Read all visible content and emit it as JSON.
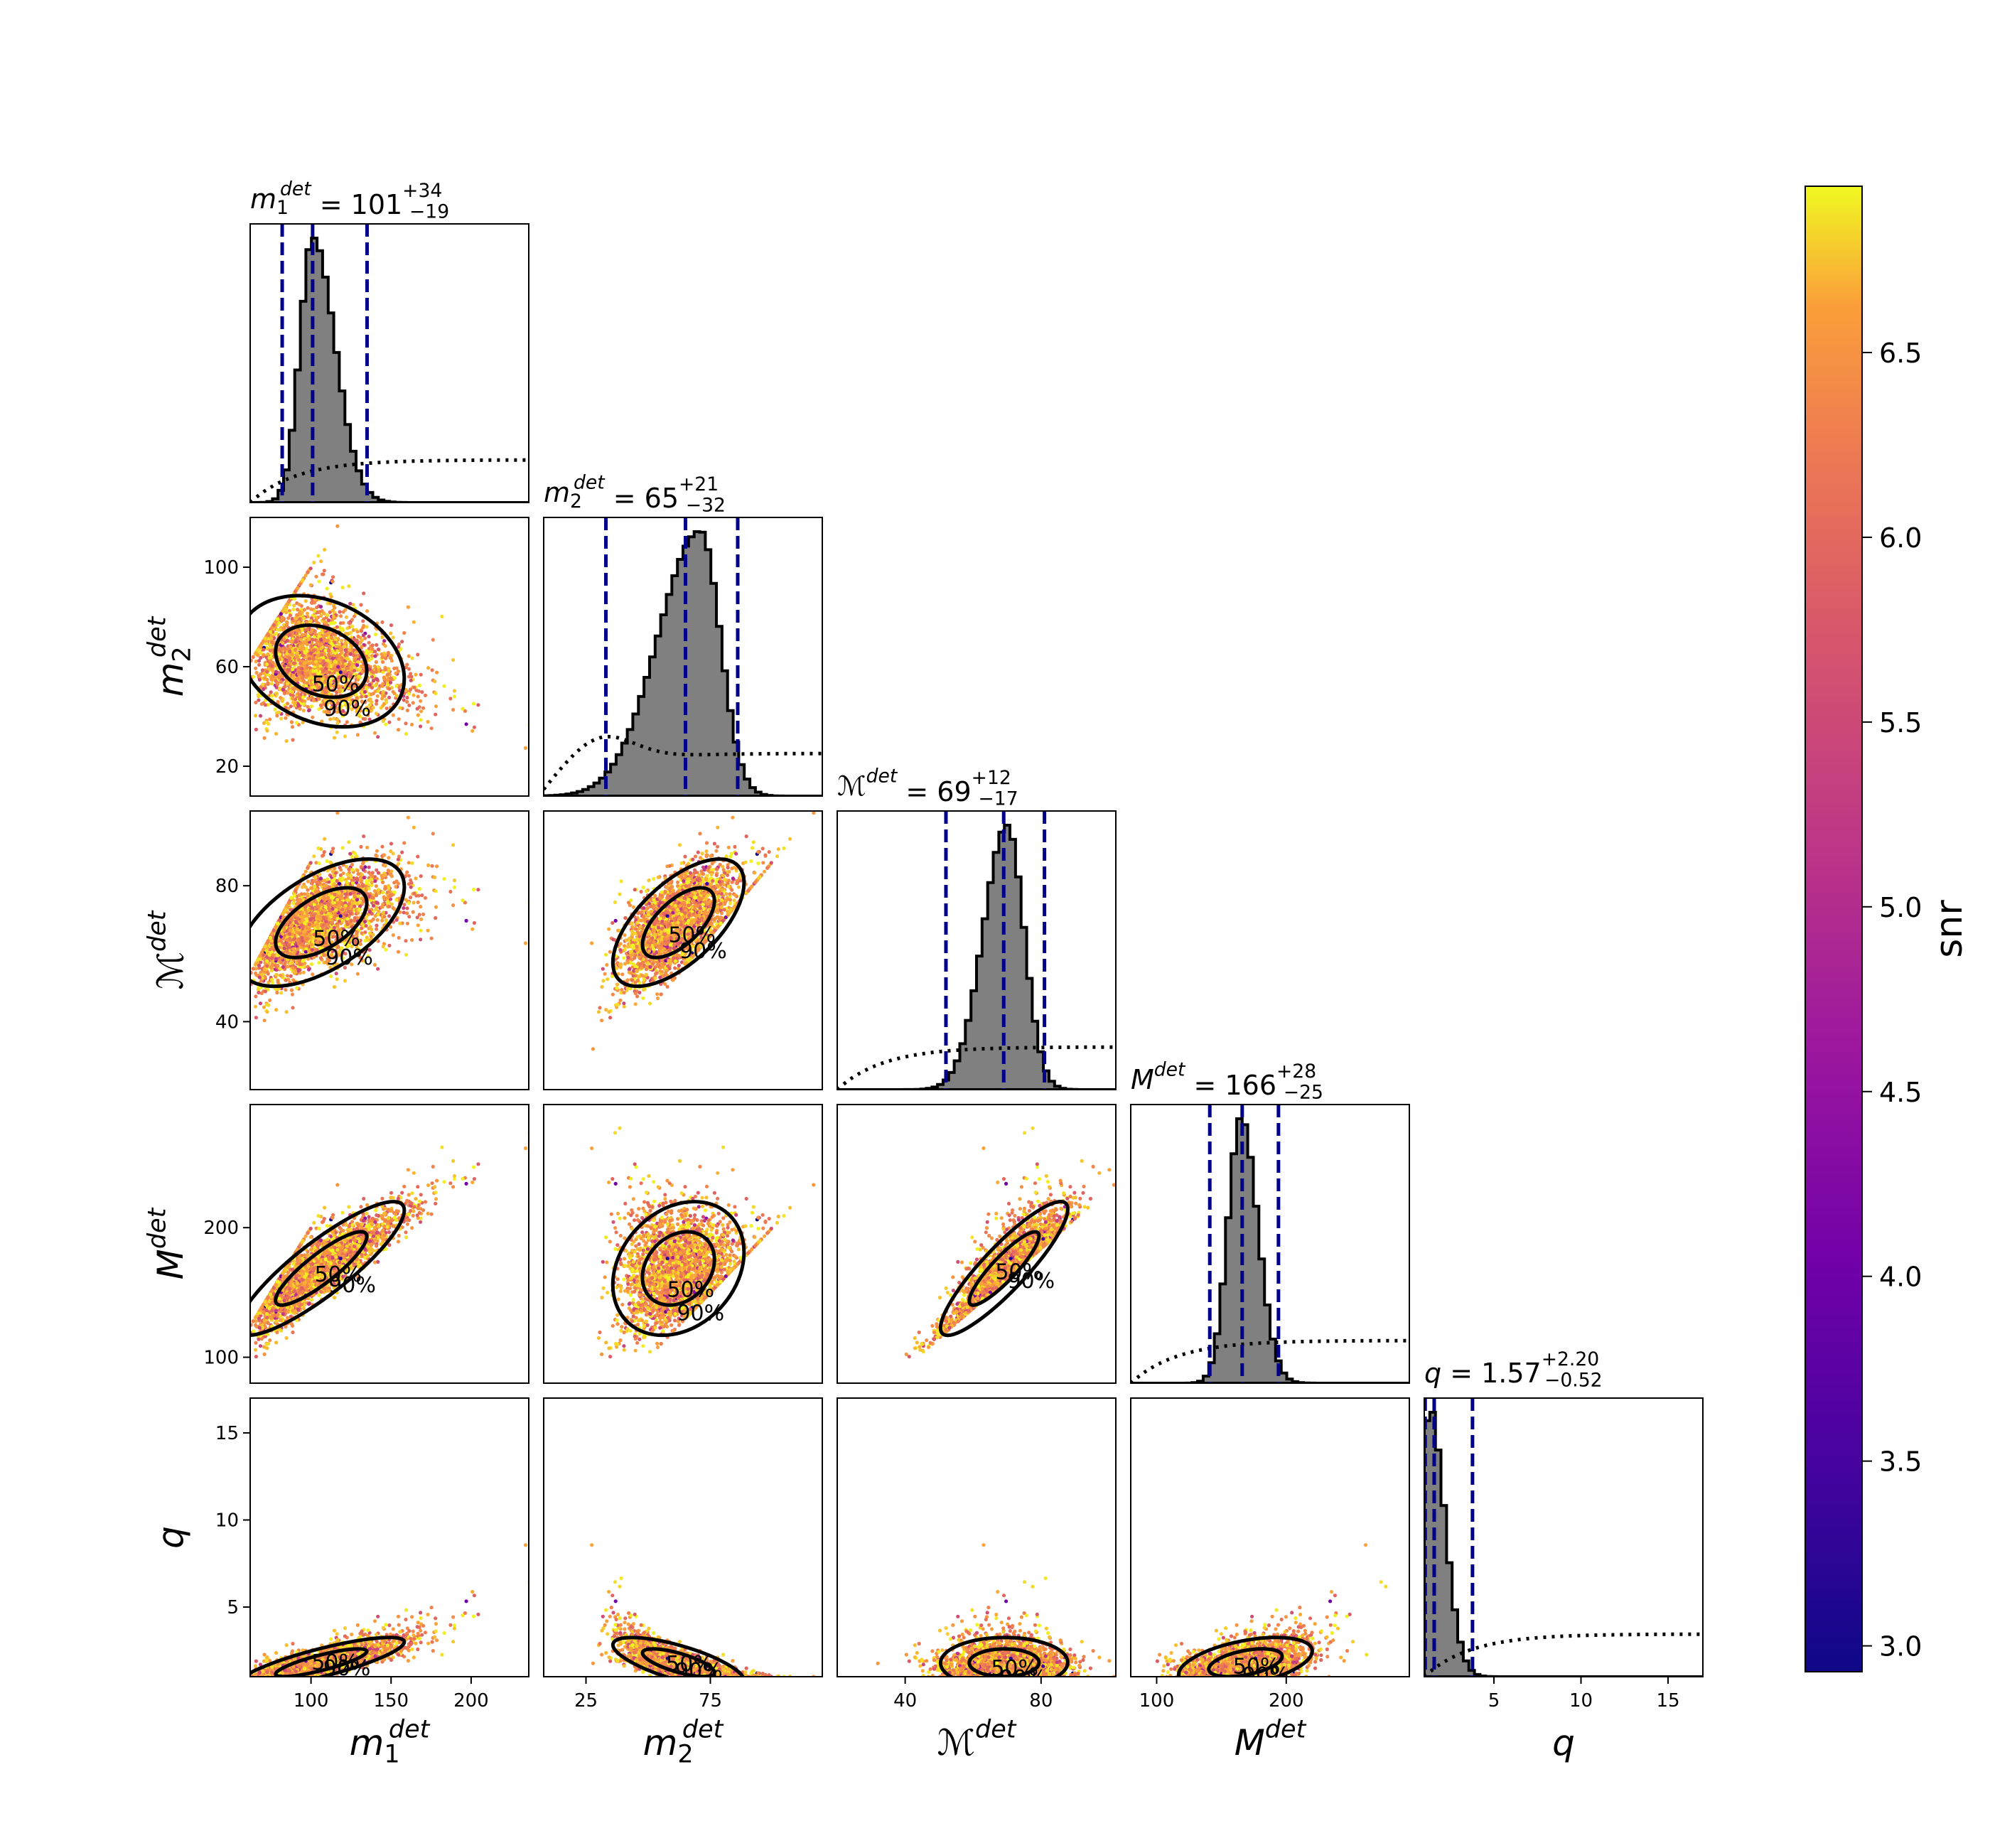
{
  "chart_data": {
    "type": "scatter",
    "description_type": "corner",
    "parameters": [
      {
        "key": "m1",
        "label": "m",
        "sub": "1",
        "sup": "det",
        "range": [
          62,
          236
        ],
        "ticks": [
          100,
          150,
          200
        ],
        "title": {
          "value": "101",
          "plus": "+34",
          "minus": "−19"
        },
        "quantiles": [
          82,
          101,
          135
        ],
        "hist_peak": 101,
        "hist_sigma_lo": 8,
        "hist_sigma_hi": 14
      },
      {
        "key": "m2",
        "label": "m",
        "sub": "2",
        "sup": "det",
        "range": [
          8,
          120
        ],
        "ticks": [
          20,
          60,
          100
        ],
        "scatter_ticks": [
          25,
          75
        ],
        "title": {
          "value": "65",
          "plus": "+21",
          "minus": "−32"
        },
        "quantiles": [
          33,
          65,
          86
        ],
        "hist_peak": 71,
        "hist_sigma_lo": 17,
        "hist_sigma_hi": 8
      },
      {
        "key": "mc",
        "label": "ℳ",
        "sub": "",
        "sup": "det",
        "range": [
          20,
          102
        ],
        "ticks": [
          40,
          80
        ],
        "title": {
          "value": "69",
          "plus": "+12",
          "minus": "−17"
        },
        "quantiles": [
          52,
          69,
          81
        ],
        "hist_peak": 70,
        "hist_sigma_lo": 7,
        "hist_sigma_hi": 5
      },
      {
        "key": "M",
        "label": "M",
        "sub": "",
        "sup": "det",
        "range": [
          80,
          295
        ],
        "ticks": [
          100,
          200
        ],
        "title": {
          "value": "166",
          "plus": "+28",
          "minus": "−25"
        },
        "quantiles": [
          141,
          166,
          194
        ],
        "hist_peak": 165,
        "hist_sigma_lo": 10,
        "hist_sigma_hi": 13
      },
      {
        "key": "q",
        "label": "q",
        "sub": "",
        "sup": "",
        "range": [
          1,
          17
        ],
        "ticks": [
          5,
          10,
          15
        ],
        "title": {
          "value": "1.57",
          "plus": "+2.20",
          "minus": "−0.52"
        },
        "quantiles": [
          1.05,
          1.57,
          3.77
        ],
        "hist_peak": 1.25,
        "hist_sigma_lo": 0.25,
        "hist_sigma_hi": 0.9
      }
    ],
    "contour_levels": [
      "50%",
      "90%"
    ],
    "colorbar": {
      "label": "snr",
      "min": 2.93,
      "max": 6.95,
      "ticks": [
        "3.0",
        "3.5",
        "4.0",
        "4.5",
        "5.0",
        "5.5",
        "6.0",
        "6.5"
      ],
      "tick_values": [
        3.0,
        3.5,
        4.0,
        4.5,
        5.0,
        5.5,
        6.0,
        6.5
      ],
      "colormap": "plasma"
    },
    "colors": {
      "hist_fill": "#808080",
      "hist_edge": "#000000",
      "quantile_line": "#00008b",
      "prior_line": "#000000"
    }
  }
}
